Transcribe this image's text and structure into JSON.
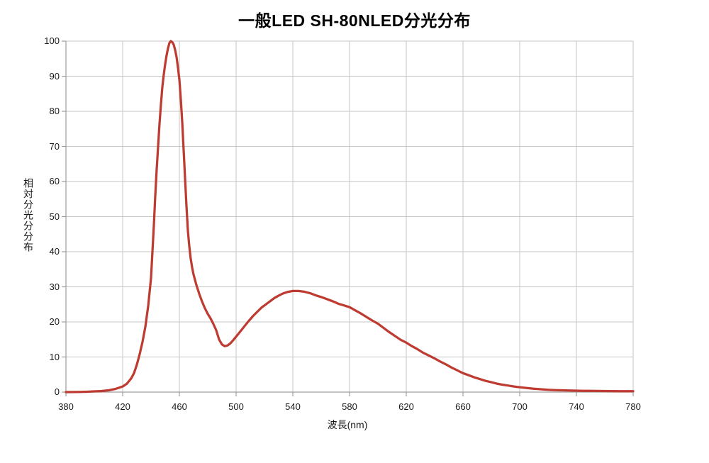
{
  "chart_data": {
    "type": "line",
    "title": "一般LED SH-80NLED分光分布",
    "xlabel": "波長(nm)",
    "ylabel": "相対分光分分布",
    "xlim": [
      380,
      780
    ],
    "ylim": [
      0,
      100
    ],
    "xticks": [
      380,
      420,
      460,
      500,
      540,
      580,
      620,
      660,
      700,
      740,
      780
    ],
    "yticks": [
      0,
      10,
      20,
      30,
      40,
      50,
      60,
      70,
      80,
      90,
      100
    ],
    "grid": true,
    "legend": false,
    "line_color": "#be3b31",
    "grid_color": "#c6c6c6",
    "axis_color": "#9d9d9d",
    "text_color": "#1a1a1a",
    "series": [
      {
        "name": "相対分光分分布",
        "points": [
          [
            380,
            0
          ],
          [
            385,
            0.02
          ],
          [
            390,
            0.05
          ],
          [
            395,
            0.1
          ],
          [
            400,
            0.2
          ],
          [
            405,
            0.3
          ],
          [
            410,
            0.5
          ],
          [
            415,
            0.9
          ],
          [
            420,
            1.6
          ],
          [
            423,
            2.4
          ],
          [
            426,
            3.9
          ],
          [
            428,
            5.4
          ],
          [
            430,
            7.8
          ],
          [
            432,
            10.8
          ],
          [
            434,
            14.3
          ],
          [
            436,
            18.6
          ],
          [
            438,
            24.5
          ],
          [
            440,
            32.5
          ],
          [
            441,
            40
          ],
          [
            442,
            47.5
          ],
          [
            443,
            56
          ],
          [
            444,
            63.5
          ],
          [
            445,
            70
          ],
          [
            446,
            76.5
          ],
          [
            447,
            82
          ],
          [
            448,
            87
          ],
          [
            449,
            90.5
          ],
          [
            450,
            93.5
          ],
          [
            451,
            96
          ],
          [
            452,
            98
          ],
          [
            453,
            99.5
          ],
          [
            454,
            100
          ],
          [
            455,
            99.7
          ],
          [
            456,
            99
          ],
          [
            457,
            97.5
          ],
          [
            458,
            95.5
          ],
          [
            459,
            92.5
          ],
          [
            460,
            89
          ],
          [
            461,
            83.5
          ],
          [
            462,
            77
          ],
          [
            463,
            69
          ],
          [
            464,
            61
          ],
          [
            465,
            53
          ],
          [
            466,
            46
          ],
          [
            467,
            41.5
          ],
          [
            468,
            38
          ],
          [
            469,
            35.5
          ],
          [
            470,
            33.5
          ],
          [
            472,
            30.5
          ],
          [
            474,
            28
          ],
          [
            476,
            25.8
          ],
          [
            478,
            23.9
          ],
          [
            480,
            22.3
          ],
          [
            482,
            21
          ],
          [
            484,
            19.4
          ],
          [
            486,
            17.6
          ],
          [
            488,
            15
          ],
          [
            490,
            13.6
          ],
          [
            492,
            13.1
          ],
          [
            494,
            13.3
          ],
          [
            496,
            13.9
          ],
          [
            498,
            14.8
          ],
          [
            500,
            15.8
          ],
          [
            503,
            17.3
          ],
          [
            506,
            18.8
          ],
          [
            509,
            20.3
          ],
          [
            512,
            21.7
          ],
          [
            515,
            22.9
          ],
          [
            518,
            24.1
          ],
          [
            521,
            25
          ],
          [
            524,
            25.9
          ],
          [
            527,
            26.8
          ],
          [
            530,
            27.5
          ],
          [
            533,
            28.1
          ],
          [
            536,
            28.5
          ],
          [
            540,
            28.8
          ],
          [
            544,
            28.8
          ],
          [
            548,
            28.6
          ],
          [
            552,
            28.2
          ],
          [
            556,
            27.6
          ],
          [
            560,
            27.1
          ],
          [
            564,
            26.5
          ],
          [
            568,
            25.9
          ],
          [
            572,
            25.2
          ],
          [
            576,
            24.7
          ],
          [
            580,
            24.2
          ],
          [
            584,
            23.3
          ],
          [
            588,
            22.4
          ],
          [
            592,
            21.4
          ],
          [
            596,
            20.4
          ],
          [
            600,
            19.5
          ],
          [
            604,
            18.3
          ],
          [
            608,
            17.1
          ],
          [
            612,
            16
          ],
          [
            616,
            14.9
          ],
          [
            620,
            14.1
          ],
          [
            624,
            13.1
          ],
          [
            628,
            12.2
          ],
          [
            632,
            11.2
          ],
          [
            636,
            10.4
          ],
          [
            640,
            9.6
          ],
          [
            644,
            8.7
          ],
          [
            648,
            7.9
          ],
          [
            652,
            7
          ],
          [
            656,
            6.2
          ],
          [
            660,
            5.4
          ],
          [
            664,
            4.8
          ],
          [
            668,
            4.2
          ],
          [
            672,
            3.7
          ],
          [
            676,
            3.2
          ],
          [
            680,
            2.8
          ],
          [
            684,
            2.4
          ],
          [
            688,
            2.1
          ],
          [
            692,
            1.85
          ],
          [
            696,
            1.6
          ],
          [
            700,
            1.4
          ],
          [
            705,
            1.15
          ],
          [
            710,
            0.95
          ],
          [
            715,
            0.8
          ],
          [
            720,
            0.65
          ],
          [
            725,
            0.57
          ],
          [
            730,
            0.5
          ],
          [
            735,
            0.45
          ],
          [
            740,
            0.4
          ],
          [
            745,
            0.37
          ],
          [
            750,
            0.34
          ],
          [
            755,
            0.32
          ],
          [
            760,
            0.3
          ],
          [
            765,
            0.28
          ],
          [
            770,
            0.27
          ],
          [
            775,
            0.26
          ],
          [
            780,
            0.25
          ]
        ]
      }
    ]
  }
}
